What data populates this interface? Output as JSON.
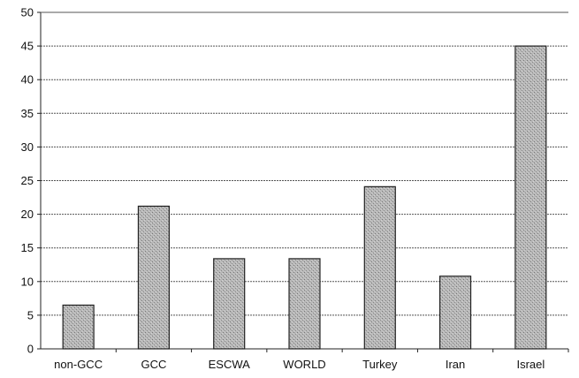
{
  "chart_data": {
    "type": "bar",
    "title": "",
    "xlabel": "",
    "ylabel": "",
    "categories": [
      "non-GCC",
      "GCC",
      "ESCWA",
      "WORLD",
      "Turkey",
      "Iran",
      "Israel"
    ],
    "values": [
      6.5,
      21.2,
      13.4,
      13.4,
      24.1,
      10.8,
      45
    ],
    "ylim": [
      0,
      50
    ],
    "yticks": [
      0,
      5,
      10,
      15,
      20,
      25,
      30,
      35,
      40,
      45,
      50
    ],
    "grid": true,
    "legend": "none",
    "colors": {
      "bar_fill": "#a9a9a9",
      "bar_stroke": "#222222",
      "axis": "#222222",
      "grid": "#555555"
    }
  }
}
